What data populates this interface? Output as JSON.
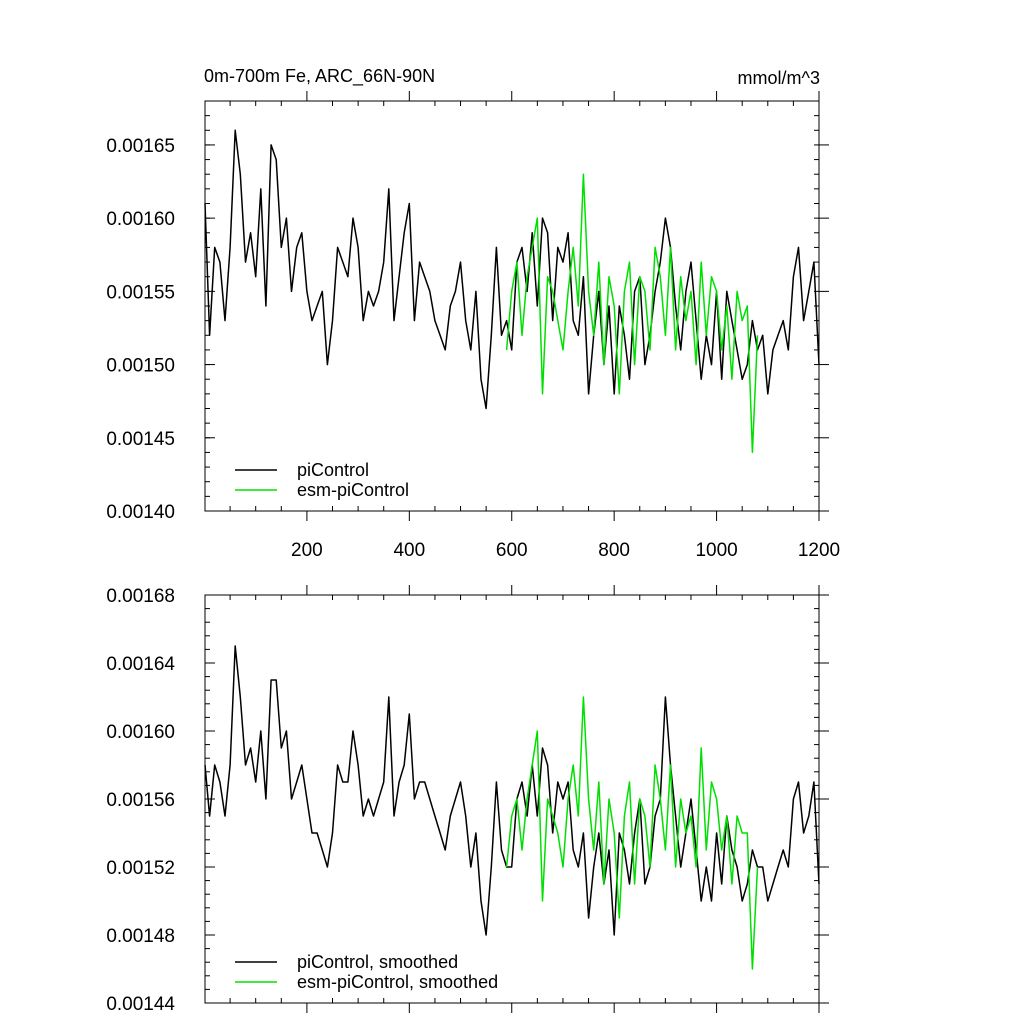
{
  "chart_data": [
    {
      "type": "line",
      "title": "0m-700m Fe, ARC_66N-90N",
      "units": "mmol/m^3",
      "xlim": [
        1,
        1200
      ],
      "ylim": [
        0.0014,
        0.00168
      ],
      "xticks": [
        200,
        400,
        600,
        800,
        1000,
        1200
      ],
      "xtick_labels": [
        "200",
        "400",
        "600",
        "800",
        "1000",
        "1200"
      ],
      "yticks": [
        0.0014,
        0.00145,
        0.0015,
        0.00155,
        0.0016,
        0.00165
      ],
      "ytick_labels": [
        "0.00140",
        "0.00145",
        "0.00150",
        "0.00155",
        "0.00160",
        "0.00165"
      ],
      "legend_position": "bottom-left",
      "series": [
        {
          "name": "piControl",
          "color": "#000000",
          "x": [
            1,
            10,
            20,
            30,
            40,
            50,
            60,
            70,
            80,
            90,
            100,
            110,
            120,
            130,
            140,
            150,
            160,
            170,
            180,
            190,
            200,
            210,
            220,
            230,
            240,
            250,
            260,
            270,
            280,
            290,
            300,
            310,
            320,
            330,
            340,
            350,
            360,
            370,
            380,
            390,
            400,
            410,
            420,
            430,
            440,
            450,
            460,
            470,
            480,
            490,
            500,
            510,
            520,
            530,
            540,
            550,
            560,
            570,
            580,
            590,
            600,
            610,
            620,
            630,
            640,
            650,
            660,
            670,
            680,
            690,
            700,
            710,
            720,
            730,
            740,
            750,
            760,
            770,
            780,
            790,
            800,
            810,
            820,
            830,
            840,
            850,
            860,
            870,
            880,
            890,
            900,
            910,
            920,
            930,
            940,
            950,
            960,
            970,
            980,
            990,
            1000,
            1010,
            1020,
            1030,
            1040,
            1050,
            1060,
            1070,
            1080,
            1090,
            1100,
            1110,
            1120,
            1130,
            1140,
            1150,
            1160,
            1170,
            1180,
            1190,
            1200
          ],
          "values": [
            0.00161,
            0.00152,
            0.00158,
            0.00157,
            0.00153,
            0.00158,
            0.00166,
            0.00163,
            0.00157,
            0.00159,
            0.00156,
            0.00162,
            0.00154,
            0.00165,
            0.00164,
            0.00158,
            0.0016,
            0.00155,
            0.00158,
            0.00159,
            0.00155,
            0.00153,
            0.00154,
            0.00155,
            0.0015,
            0.00153,
            0.00158,
            0.00157,
            0.00156,
            0.0016,
            0.00158,
            0.00153,
            0.00155,
            0.00154,
            0.00155,
            0.00157,
            0.00162,
            0.00153,
            0.00156,
            0.00159,
            0.00161,
            0.00153,
            0.00157,
            0.00156,
            0.00155,
            0.00153,
            0.00152,
            0.00151,
            0.00154,
            0.00155,
            0.00157,
            0.00153,
            0.00151,
            0.00155,
            0.00149,
            0.00147,
            0.00152,
            0.00158,
            0.00152,
            0.00153,
            0.00151,
            0.00157,
            0.00158,
            0.00155,
            0.00159,
            0.00154,
            0.0016,
            0.00159,
            0.00153,
            0.00158,
            0.00157,
            0.00159,
            0.00153,
            0.00152,
            0.00156,
            0.00148,
            0.00152,
            0.00155,
            0.0015,
            0.00154,
            0.00148,
            0.00154,
            0.00152,
            0.00149,
            0.00155,
            0.00156,
            0.0015,
            0.00152,
            0.00155,
            0.00157,
            0.0016,
            0.00158,
            0.00154,
            0.00151,
            0.00155,
            0.00157,
            0.00153,
            0.00149,
            0.00152,
            0.0015,
            0.00155,
            0.00149,
            0.00155,
            0.00153,
            0.00151,
            0.00149,
            0.0015,
            0.00153,
            0.00151,
            0.00152,
            0.00148,
            0.00151,
            0.00152,
            0.00153,
            0.00151,
            0.00156,
            0.00158,
            0.00153,
            0.00155,
            0.00157,
            0.0015
          ]
        },
        {
          "name": "esm-piControl",
          "color": "#00e000",
          "x": [
            590,
            600,
            610,
            620,
            630,
            640,
            650,
            660,
            670,
            680,
            690,
            700,
            710,
            720,
            730,
            740,
            750,
            760,
            770,
            780,
            790,
            800,
            810,
            820,
            830,
            840,
            850,
            860,
            870,
            880,
            890,
            900,
            910,
            920,
            930,
            940,
            950,
            960,
            970,
            980,
            990,
            1000,
            1010,
            1020,
            1030,
            1040,
            1050,
            1060,
            1070,
            1080
          ],
          "values": [
            0.00151,
            0.00155,
            0.00157,
            0.00152,
            0.00156,
            0.00158,
            0.0016,
            0.00148,
            0.00156,
            0.00155,
            0.00153,
            0.00151,
            0.00155,
            0.00158,
            0.00154,
            0.00163,
            0.00155,
            0.00152,
            0.00157,
            0.0015,
            0.00156,
            0.00154,
            0.00148,
            0.00155,
            0.00157,
            0.0015,
            0.00156,
            0.00155,
            0.00151,
            0.00158,
            0.00156,
            0.00152,
            0.00158,
            0.00151,
            0.00156,
            0.00153,
            0.00155,
            0.0015,
            0.00157,
            0.00152,
            0.00156,
            0.00155,
            0.00151,
            0.00154,
            0.00149,
            0.00155,
            0.00153,
            0.00154,
            0.00144,
            0.00152
          ]
        }
      ]
    },
    {
      "type": "line",
      "xlim": [
        1,
        1200
      ],
      "ylim": [
        0.00144,
        0.00168
      ],
      "xticks": [
        200,
        400,
        600,
        800,
        1000,
        1200
      ],
      "yticks": [
        0.00144,
        0.00148,
        0.00152,
        0.00156,
        0.0016,
        0.00164,
        0.00168
      ],
      "ytick_labels": [
        "0.00144",
        "0.00148",
        "0.00152",
        "0.00156",
        "0.00160",
        "0.00164",
        "0.00168"
      ],
      "legend_position": "bottom-left",
      "series": [
        {
          "name": "piControl, smoothed",
          "color": "#000000",
          "x": [
            1,
            10,
            20,
            30,
            40,
            50,
            60,
            70,
            80,
            90,
            100,
            110,
            120,
            130,
            140,
            150,
            160,
            170,
            180,
            190,
            200,
            210,
            220,
            230,
            240,
            250,
            260,
            270,
            280,
            290,
            300,
            310,
            320,
            330,
            340,
            350,
            360,
            370,
            380,
            390,
            400,
            410,
            420,
            430,
            440,
            450,
            460,
            470,
            480,
            490,
            500,
            510,
            520,
            530,
            540,
            550,
            560,
            570,
            580,
            590,
            600,
            610,
            620,
            630,
            640,
            650,
            660,
            670,
            680,
            690,
            700,
            710,
            720,
            730,
            740,
            750,
            760,
            770,
            780,
            790,
            800,
            810,
            820,
            830,
            840,
            850,
            860,
            870,
            880,
            890,
            900,
            910,
            920,
            930,
            940,
            950,
            960,
            970,
            980,
            990,
            1000,
            1010,
            1020,
            1030,
            1040,
            1050,
            1060,
            1070,
            1080,
            1090,
            1100,
            1110,
            1120,
            1130,
            1140,
            1150,
            1160,
            1170,
            1180,
            1190,
            1200
          ],
          "values": [
            0.00158,
            0.00155,
            0.00158,
            0.00157,
            0.00155,
            0.00158,
            0.00165,
            0.00162,
            0.00158,
            0.00159,
            0.00157,
            0.0016,
            0.00156,
            0.00163,
            0.00163,
            0.00159,
            0.0016,
            0.00156,
            0.00157,
            0.00158,
            0.00156,
            0.00154,
            0.00154,
            0.00153,
            0.00152,
            0.00154,
            0.00158,
            0.00157,
            0.00157,
            0.0016,
            0.00158,
            0.00155,
            0.00156,
            0.00155,
            0.00156,
            0.00157,
            0.00162,
            0.00155,
            0.00157,
            0.00158,
            0.00161,
            0.00156,
            0.00157,
            0.00157,
            0.00156,
            0.00155,
            0.00154,
            0.00153,
            0.00155,
            0.00156,
            0.00157,
            0.00155,
            0.00152,
            0.00154,
            0.0015,
            0.00148,
            0.00152,
            0.00157,
            0.00153,
            0.00152,
            0.00152,
            0.00156,
            0.00157,
            0.00155,
            0.00158,
            0.00155,
            0.00159,
            0.00158,
            0.00154,
            0.00157,
            0.00156,
            0.00157,
            0.00153,
            0.00152,
            0.00154,
            0.00149,
            0.00152,
            0.00154,
            0.00151,
            0.00153,
            0.00148,
            0.00154,
            0.00153,
            0.00151,
            0.00154,
            0.00156,
            0.00151,
            0.00152,
            0.00155,
            0.00156,
            0.00162,
            0.00158,
            0.00155,
            0.00152,
            0.00154,
            0.00156,
            0.00153,
            0.0015,
            0.00152,
            0.0015,
            0.00154,
            0.00151,
            0.00155,
            0.00153,
            0.00152,
            0.0015,
            0.00151,
            0.00153,
            0.00152,
            0.00152,
            0.0015,
            0.00151,
            0.00152,
            0.00153,
            0.00152,
            0.00156,
            0.00157,
            0.00154,
            0.00155,
            0.00157,
            0.00151
          ]
        },
        {
          "name": "esm-piControl, smoothed",
          "color": "#00e000",
          "x": [
            590,
            600,
            610,
            620,
            630,
            640,
            650,
            660,
            670,
            680,
            690,
            700,
            710,
            720,
            730,
            740,
            750,
            760,
            770,
            780,
            790,
            800,
            810,
            820,
            830,
            840,
            850,
            860,
            870,
            880,
            890,
            900,
            910,
            920,
            930,
            940,
            950,
            960,
            970,
            980,
            990,
            1000,
            1010,
            1020,
            1030,
            1040,
            1050,
            1060,
            1070,
            1080
          ],
          "values": [
            0.00152,
            0.00155,
            0.00156,
            0.00153,
            0.00156,
            0.00158,
            0.0016,
            0.0015,
            0.00156,
            0.00155,
            0.00154,
            0.00152,
            0.00156,
            0.00158,
            0.00155,
            0.00162,
            0.00156,
            0.00153,
            0.00157,
            0.00151,
            0.00156,
            0.00154,
            0.00149,
            0.00155,
            0.00157,
            0.00151,
            0.00156,
            0.00155,
            0.00152,
            0.00158,
            0.00156,
            0.00153,
            0.00158,
            0.00152,
            0.00156,
            0.00154,
            0.00155,
            0.00152,
            0.00159,
            0.00153,
            0.00157,
            0.00156,
            0.00153,
            0.00155,
            0.00151,
            0.00155,
            0.00154,
            0.00154,
            0.00146,
            0.00152
          ]
        }
      ]
    }
  ]
}
